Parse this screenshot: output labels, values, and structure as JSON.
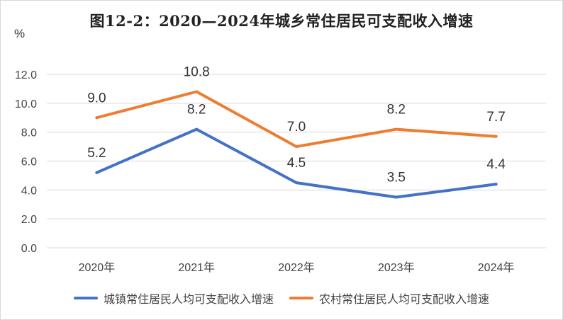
{
  "chart_data": {
    "type": "line",
    "title": "图12-2：2020—2024年城乡常住居民可支配收入增速",
    "ylabel": "%",
    "categories": [
      "2020年",
      "2021年",
      "2022年",
      "2023年",
      "2024年"
    ],
    "ylim": [
      0,
      12
    ],
    "yticks": [
      "0.0",
      "2.0",
      "4.0",
      "6.0",
      "8.0",
      "10.0",
      "12.0"
    ],
    "grid": true,
    "legend_position": "bottom",
    "series": [
      {
        "name": "城镇常住居民人均可支配收入增速",
        "color": "#4472c4",
        "values": [
          5.2,
          8.2,
          4.5,
          3.5,
          4.4
        ],
        "labels": [
          "5.2",
          "8.2",
          "4.5",
          "3.5",
          "4.4"
        ]
      },
      {
        "name": "农村常住居民人均可支配收入增速",
        "color": "#ed7d31",
        "values": [
          9.0,
          10.8,
          7.0,
          8.2,
          7.7
        ],
        "labels": [
          "9.0",
          "10.8",
          "7.0",
          "8.2",
          "7.7"
        ]
      }
    ]
  }
}
